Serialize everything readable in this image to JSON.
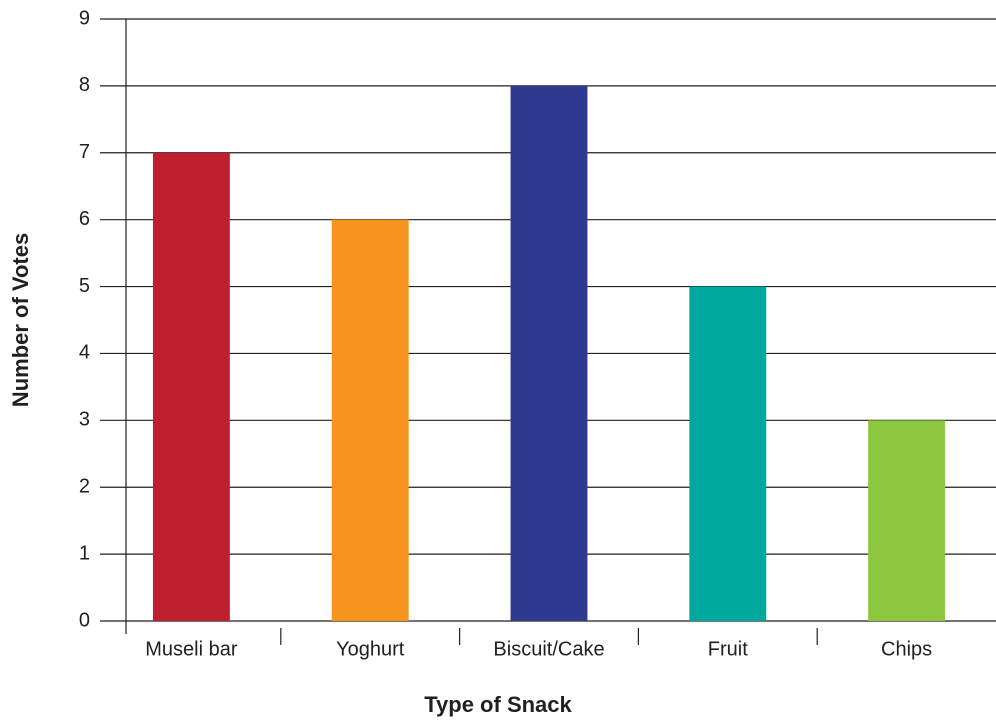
{
  "chart_data": {
    "type": "bar",
    "x_label": "Type of Snack",
    "y_label": "Number of Votes",
    "categories": [
      "Museli bar",
      "Yoghurt",
      "Biscuit/Cake",
      "Fruit",
      "Chips"
    ],
    "values": [
      7,
      6,
      8,
      5,
      3
    ],
    "colors": [
      "#c01f2f",
      "#f7941d",
      "#2e3a8f",
      "#00a99d",
      "#8dc63f"
    ],
    "ylim": [
      0,
      9
    ],
    "yticks": [
      0,
      1,
      2,
      3,
      4,
      5,
      6,
      7,
      8,
      9
    ],
    "grid": true
  }
}
